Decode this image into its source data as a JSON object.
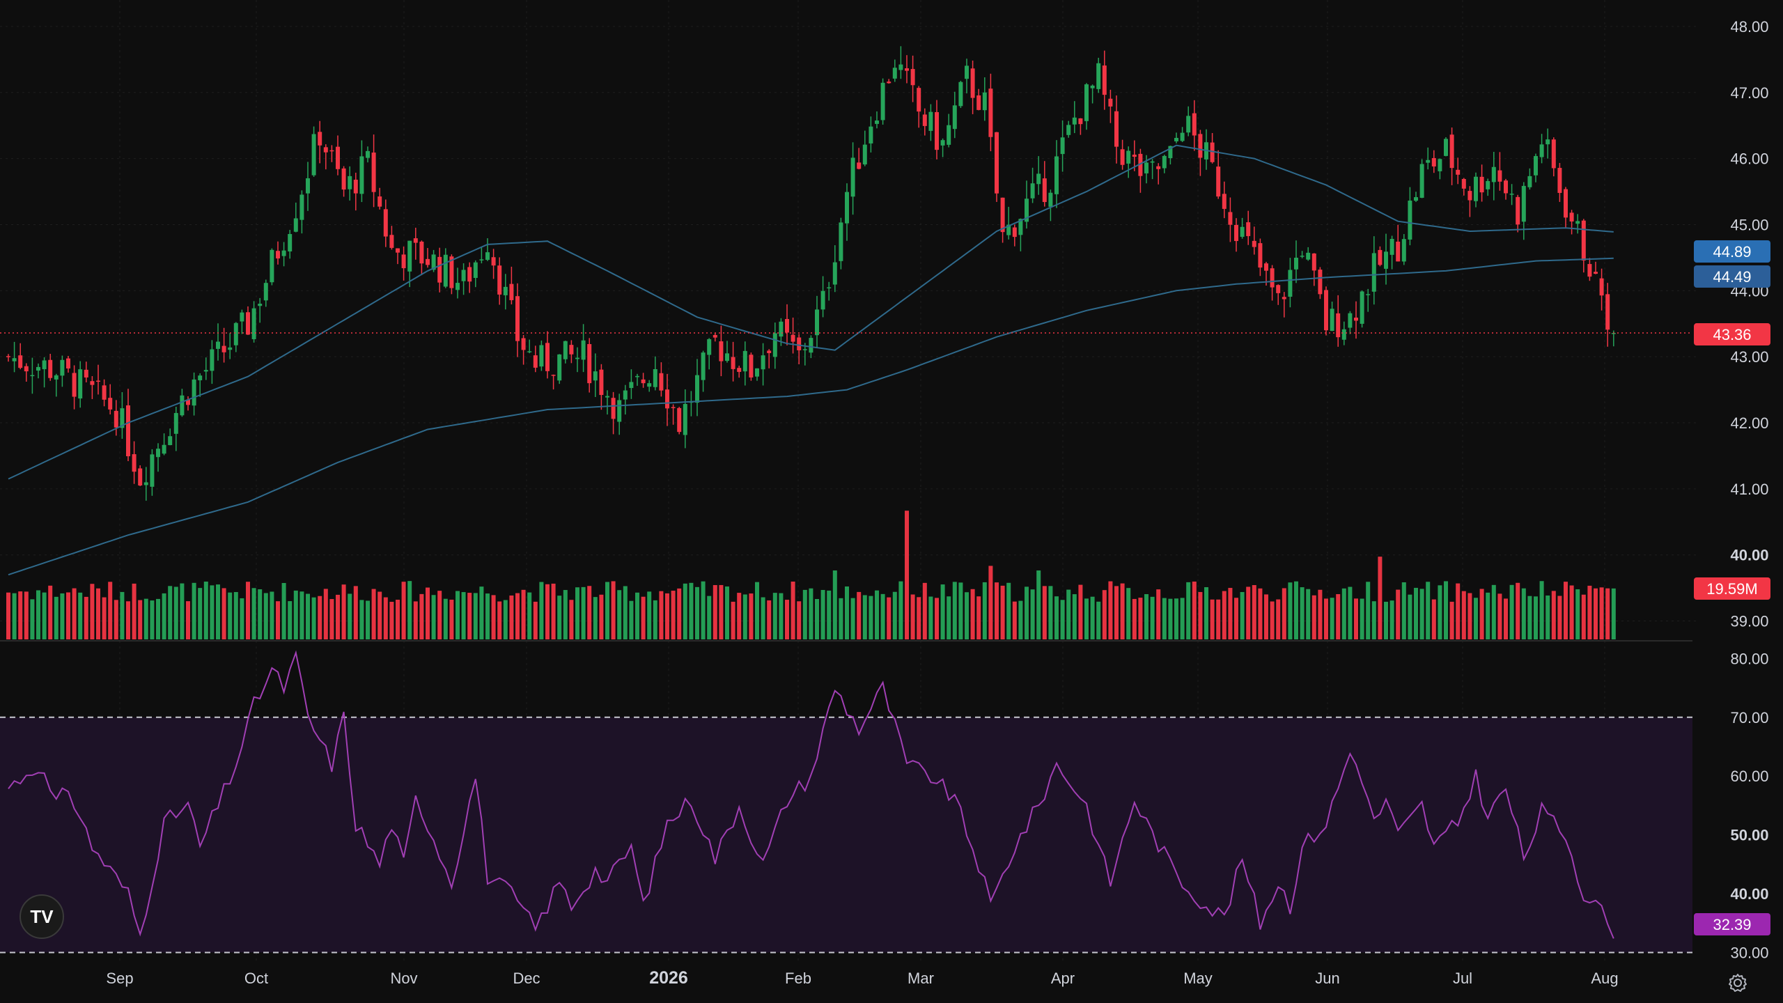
{
  "chart_data": {
    "type": "candlestick",
    "price_axis": {
      "ticks": [
        "48.00",
        "47.00",
        "46.00",
        "45.00",
        "44.00",
        "43.00",
        "42.00",
        "41.00",
        "40.00",
        "39.00"
      ],
      "ylim": [
        38.7,
        48.4
      ]
    },
    "rsi_axis": {
      "ticks": [
        "80.00",
        "70.00",
        "60.00",
        "50.00",
        "40.00",
        "30.00"
      ],
      "ylim": [
        29,
        83
      ],
      "bands": [
        30,
        70
      ]
    },
    "time_axis": {
      "ticks": [
        "Sep",
        "Oct",
        "Nov",
        "Dec",
        "2026",
        "Feb",
        "Mar",
        "Apr",
        "May",
        "Jun",
        "Jul",
        "Aug"
      ],
      "bold": [
        "50.00",
        "40.00",
        "2026"
      ]
    },
    "badges": {
      "ma_fast": "44.89",
      "ma_slow": "44.49",
      "last_price": "43.36",
      "volume": "19.59M",
      "rsi": "32.39"
    },
    "anchors": [
      [
        0,
        43.0
      ],
      [
        8,
        42.8
      ],
      [
        18,
        42.2
      ],
      [
        22,
        41.2
      ],
      [
        30,
        42.5
      ],
      [
        40,
        43.5
      ],
      [
        48,
        45.3
      ],
      [
        52,
        46.4
      ],
      [
        56,
        45.5
      ],
      [
        60,
        45.9
      ],
      [
        64,
        44.6
      ],
      [
        70,
        44.5
      ],
      [
        76,
        44.1
      ],
      [
        80,
        44.8
      ],
      [
        85,
        43.3
      ],
      [
        88,
        42.9
      ],
      [
        96,
        43.0
      ],
      [
        102,
        42.2
      ],
      [
        108,
        42.9
      ],
      [
        112,
        42.0
      ],
      [
        118,
        43.2
      ],
      [
        124,
        42.8
      ],
      [
        128,
        43.4
      ],
      [
        132,
        43.0
      ],
      [
        136,
        43.8
      ],
      [
        140,
        45.5
      ],
      [
        144,
        46.6
      ],
      [
        148,
        47.5
      ],
      [
        152,
        46.7
      ],
      [
        156,
        46.2
      ],
      [
        160,
        47.2
      ],
      [
        163,
        46.8
      ],
      [
        166,
        44.8
      ],
      [
        170,
        45.3
      ],
      [
        174,
        45.7
      ],
      [
        178,
        46.6
      ],
      [
        182,
        47.2
      ],
      [
        185,
        46.2
      ],
      [
        190,
        45.7
      ],
      [
        194,
        46.0
      ],
      [
        196,
        46.6
      ],
      [
        200,
        46.0
      ],
      [
        204,
        45.2
      ],
      [
        208,
        44.5
      ],
      [
        212,
        43.8
      ],
      [
        216,
        44.7
      ],
      [
        220,
        43.5
      ],
      [
        224,
        43.6
      ],
      [
        228,
        44.3
      ],
      [
        232,
        44.7
      ],
      [
        236,
        45.8
      ],
      [
        240,
        46.1
      ],
      [
        244,
        45.5
      ],
      [
        248,
        45.9
      ],
      [
        252,
        45.2
      ],
      [
        256,
        46.3
      ],
      [
        260,
        45.3
      ],
      [
        264,
        44.4
      ],
      [
        268,
        43.36
      ]
    ],
    "ma_fast": [
      [
        0,
        41.15
      ],
      [
        20,
        42.0
      ],
      [
        40,
        42.7
      ],
      [
        55,
        43.5
      ],
      [
        70,
        44.3
      ],
      [
        80,
        44.7
      ],
      [
        90,
        44.75
      ],
      [
        100,
        44.3
      ],
      [
        115,
        43.6
      ],
      [
        130,
        43.2
      ],
      [
        138,
        43.1
      ],
      [
        150,
        43.9
      ],
      [
        165,
        44.9
      ],
      [
        180,
        45.5
      ],
      [
        195,
        46.2
      ],
      [
        208,
        46.0
      ],
      [
        220,
        45.6
      ],
      [
        232,
        45.05
      ],
      [
        244,
        44.9
      ],
      [
        260,
        44.95
      ],
      [
        268,
        44.89
      ]
    ],
    "ma_slow": [
      [
        0,
        39.7
      ],
      [
        20,
        40.3
      ],
      [
        40,
        40.8
      ],
      [
        55,
        41.4
      ],
      [
        70,
        41.9
      ],
      [
        90,
        42.2
      ],
      [
        110,
        42.3
      ],
      [
        130,
        42.4
      ],
      [
        140,
        42.5
      ],
      [
        150,
        42.8
      ],
      [
        165,
        43.3
      ],
      [
        180,
        43.7
      ],
      [
        195,
        44.0
      ],
      [
        205,
        44.1
      ],
      [
        220,
        44.2
      ],
      [
        240,
        44.3
      ],
      [
        255,
        44.45
      ],
      [
        268,
        44.49
      ]
    ],
    "rsi_anchors": [
      [
        0,
        58
      ],
      [
        5,
        62
      ],
      [
        8,
        55
      ],
      [
        10,
        58
      ],
      [
        14,
        48
      ],
      [
        20,
        40
      ],
      [
        22,
        33
      ],
      [
        26,
        52
      ],
      [
        30,
        55
      ],
      [
        32,
        48
      ],
      [
        38,
        62
      ],
      [
        41,
        72
      ],
      [
        44,
        78
      ],
      [
        46,
        75
      ],
      [
        48,
        80
      ],
      [
        50,
        70
      ],
      [
        54,
        62
      ],
      [
        56,
        70
      ],
      [
        58,
        52
      ],
      [
        62,
        45
      ],
      [
        64,
        52
      ],
      [
        66,
        45
      ],
      [
        68,
        56
      ],
      [
        70,
        52
      ],
      [
        74,
        42
      ],
      [
        78,
        60
      ],
      [
        80,
        43
      ],
      [
        84,
        40
      ],
      [
        88,
        34
      ],
      [
        92,
        42
      ],
      [
        94,
        38
      ],
      [
        98,
        44
      ],
      [
        100,
        42
      ],
      [
        104,
        48
      ],
      [
        106,
        38
      ],
      [
        110,
        52
      ],
      [
        114,
        56
      ],
      [
        118,
        46
      ],
      [
        122,
        55
      ],
      [
        126,
        45
      ],
      [
        130,
        56
      ],
      [
        134,
        60
      ],
      [
        138,
        75
      ],
      [
        142,
        68
      ],
      [
        146,
        75
      ],
      [
        150,
        62
      ],
      [
        154,
        60
      ],
      [
        158,
        56
      ],
      [
        162,
        45
      ],
      [
        164,
        38
      ],
      [
        168,
        48
      ],
      [
        172,
        55
      ],
      [
        175,
        62
      ],
      [
        178,
        58
      ],
      [
        180,
        55
      ],
      [
        182,
        48
      ],
      [
        184,
        42
      ],
      [
        188,
        56
      ],
      [
        190,
        52
      ],
      [
        194,
        45
      ],
      [
        196,
        42
      ],
      [
        200,
        38
      ],
      [
        203,
        36
      ],
      [
        206,
        46
      ],
      [
        209,
        35
      ],
      [
        212,
        42
      ],
      [
        214,
        38
      ],
      [
        216,
        48
      ],
      [
        220,
        52
      ],
      [
        224,
        64
      ],
      [
        226,
        60
      ],
      [
        228,
        52
      ],
      [
        230,
        56
      ],
      [
        232,
        50
      ],
      [
        236,
        55
      ],
      [
        238,
        48
      ],
      [
        242,
        52
      ],
      [
        245,
        60
      ],
      [
        247,
        53
      ],
      [
        250,
        58
      ],
      [
        253,
        46
      ],
      [
        256,
        54
      ],
      [
        260,
        50
      ],
      [
        263,
        40
      ],
      [
        265,
        39
      ],
      [
        268,
        32.39
      ]
    ],
    "volume_spikes": [
      [
        138,
        1.5
      ],
      [
        150,
        2.8
      ],
      [
        164,
        1.6
      ],
      [
        172,
        1.5
      ],
      [
        229,
        1.8
      ],
      [
        236,
        1.1
      ]
    ]
  },
  "colors": {
    "background": "#0e0e0e",
    "up": "#26a55a",
    "down": "#f23645",
    "ma_line": "#2f6a8c",
    "rsi_line": "#a13fb4",
    "rsi_band": "#1d1227",
    "ma_fast_badge": "#2a6fb4",
    "ma_slow_badge": "#2c5f99",
    "last_badge": "#f23645",
    "rsi_badge": "#9c27b0",
    "axis_text": "#d1d4dc"
  },
  "ui": {
    "logo_text": "TV",
    "settings_icon": "gear-icon"
  }
}
